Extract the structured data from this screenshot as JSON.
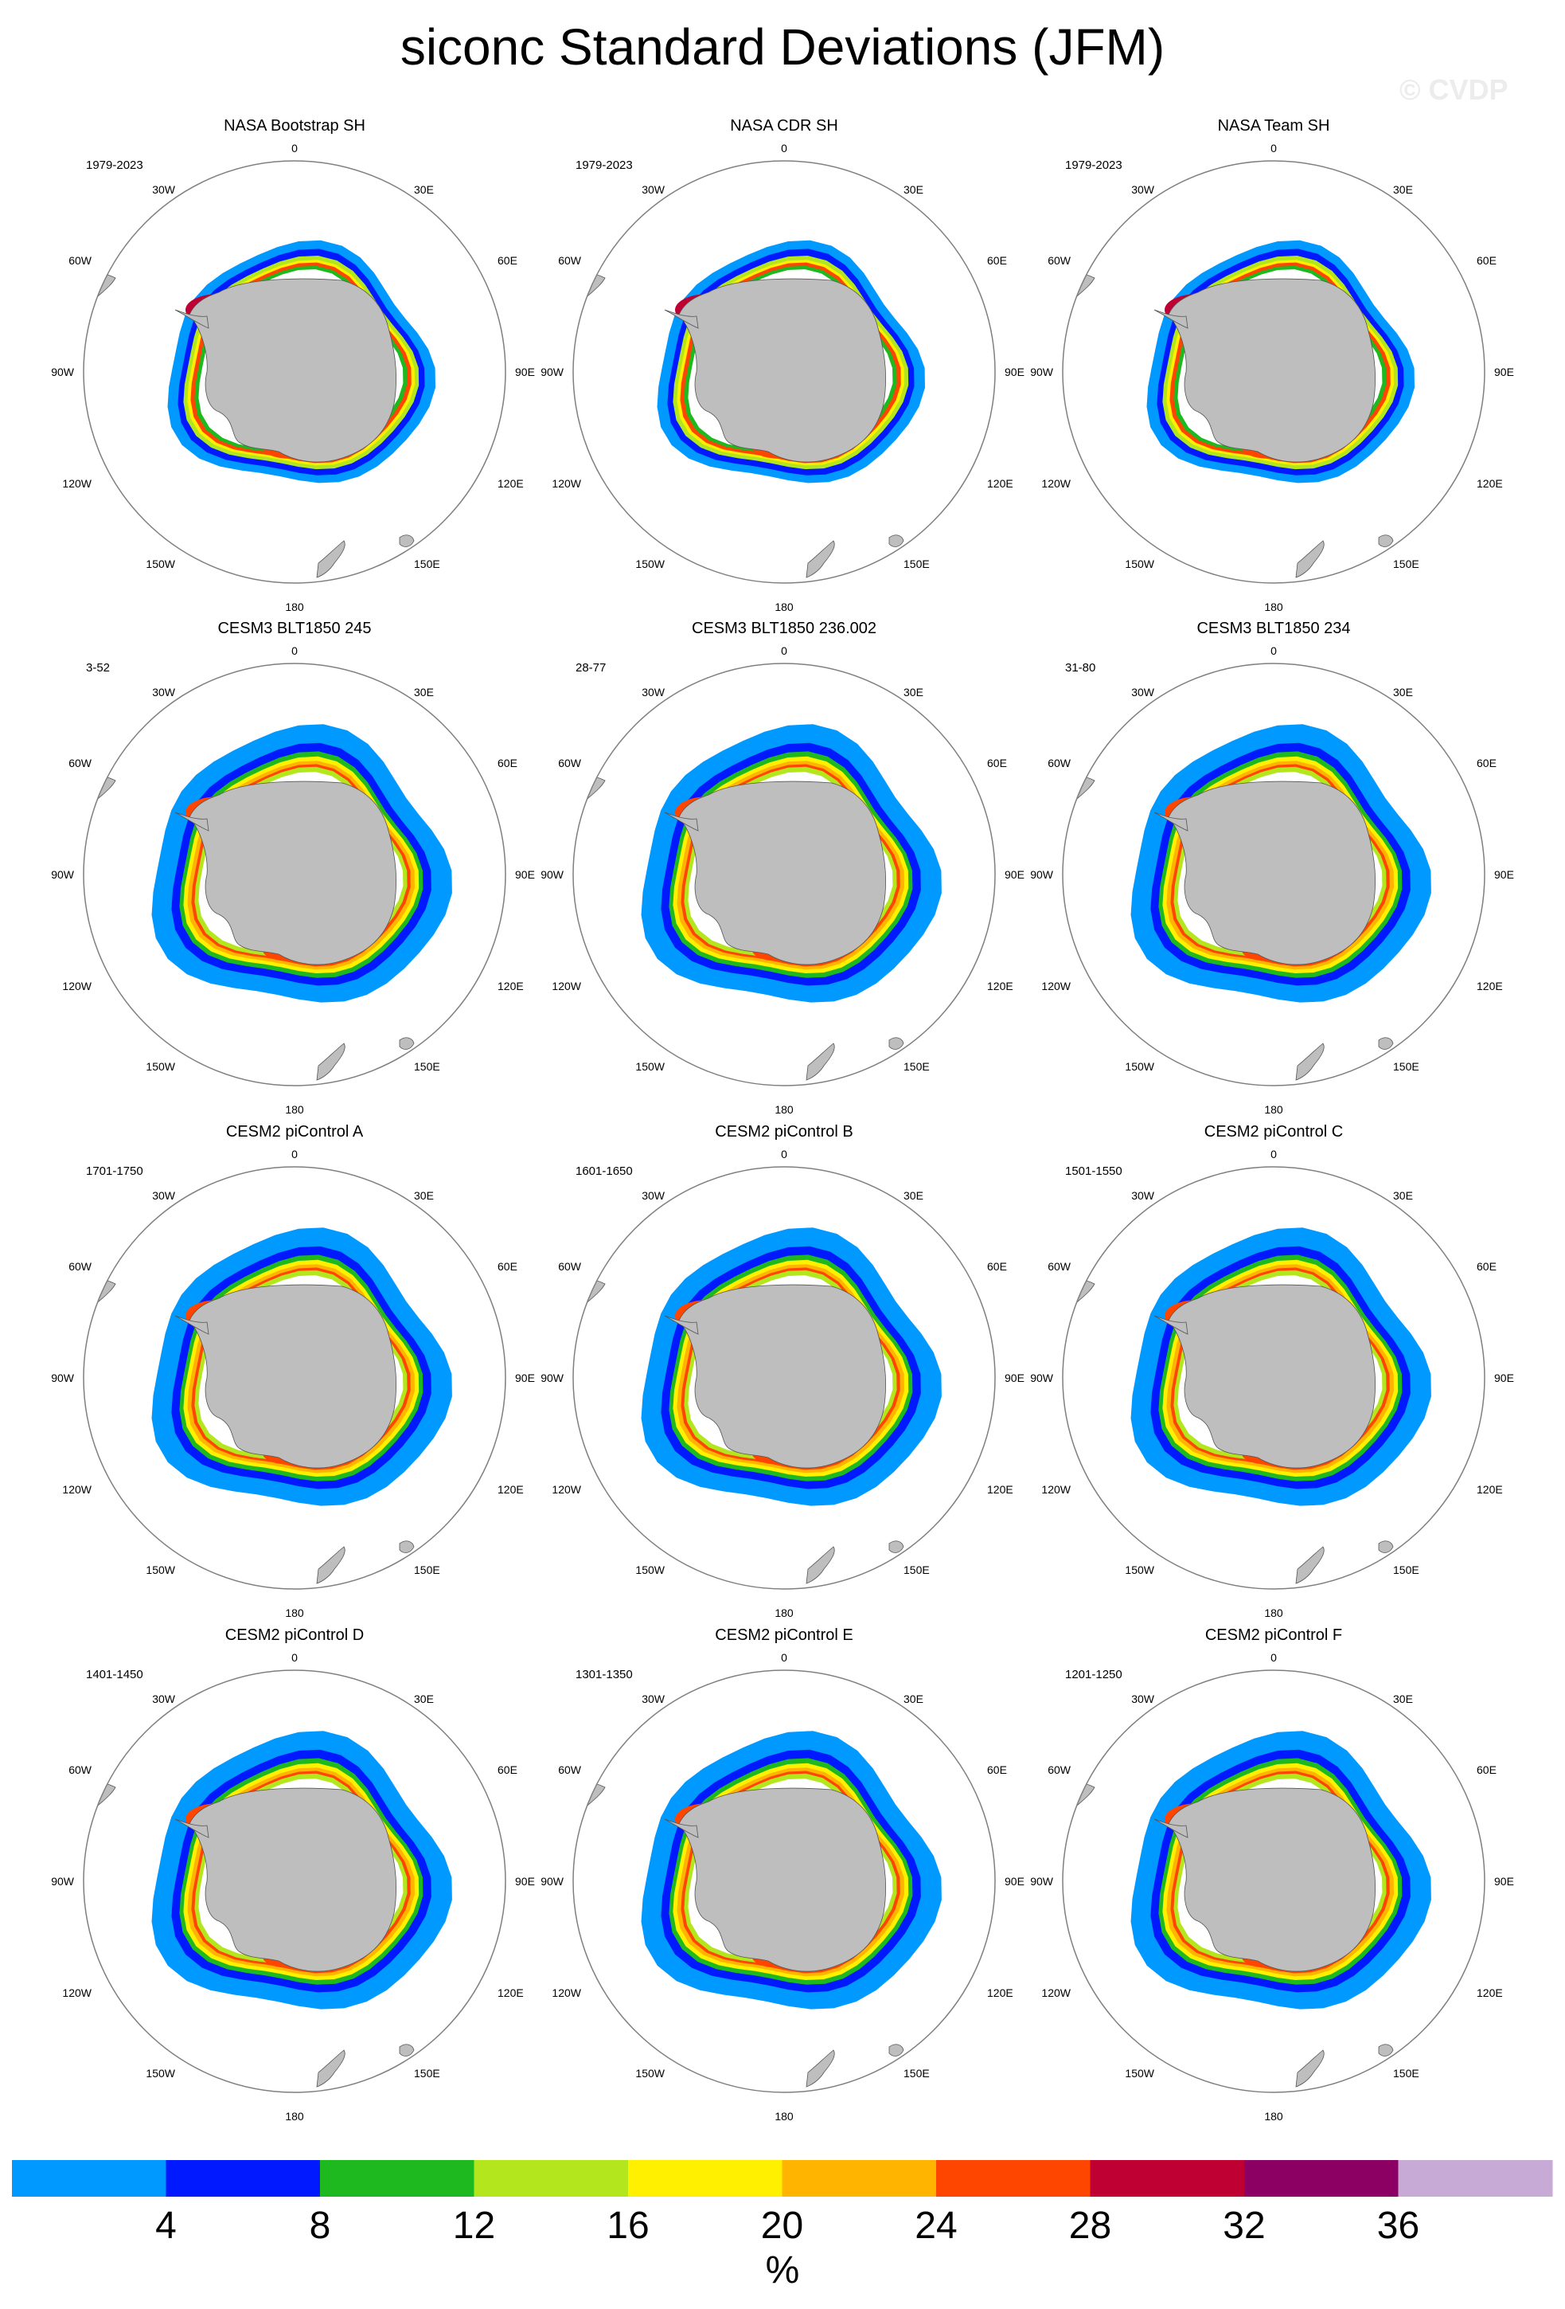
{
  "figure": {
    "title": "siconc Standard Deviations (JFM)",
    "watermark": "© CVDP"
  },
  "panels": [
    {
      "title": "NASA Bootstrap SH",
      "period": "1979-2023",
      "style": "obs"
    },
    {
      "title": "NASA CDR SH",
      "period": "1979-2023",
      "style": "obs"
    },
    {
      "title": "NASA Team SH",
      "period": "1979-2023",
      "style": "obs"
    },
    {
      "title": "CESM3 BLT1850 245",
      "period": "3-52",
      "style": "model"
    },
    {
      "title": "CESM3 BLT1850 236.002",
      "period": "28-77",
      "style": "model"
    },
    {
      "title": "CESM3 BLT1850 234",
      "period": "31-80",
      "style": "model"
    },
    {
      "title": "CESM2 piControl A",
      "period": "1701-1750",
      "style": "model"
    },
    {
      "title": "CESM2 piControl B",
      "period": "1601-1650",
      "style": "model"
    },
    {
      "title": "CESM2 piControl C",
      "period": "1501-1550",
      "style": "model"
    },
    {
      "title": "CESM2 piControl D",
      "period": "1401-1450",
      "style": "model"
    },
    {
      "title": "CESM2 piControl E",
      "period": "1301-1350",
      "style": "model"
    },
    {
      "title": "CESM2 piControl F",
      "period": "1201-1250",
      "style": "model"
    }
  ],
  "map_labels": {
    "top": "0",
    "top_left": "30W",
    "top_right": "30E",
    "upper_left": "60W",
    "upper_right": "60E",
    "left": "90W",
    "right": "90E",
    "lower_left": "120W",
    "lower_right": "120E",
    "bottom_left": "150W",
    "bottom_right": "150E",
    "bottom": "180"
  },
  "colors": {
    "land": "#bebebe",
    "ice_edge": "#ffffff",
    "frame": "#7f7f7f"
  },
  "colorbar": {
    "colors": [
      "#0099ff",
      "#0019ff",
      "#1eb91e",
      "#b4e61e",
      "#fff000",
      "#ffb400",
      "#ff4600",
      "#be0032",
      "#8c0064",
      "#c8aad7"
    ],
    "tick_labels": [
      "4",
      "8",
      "12",
      "16",
      "20",
      "24",
      "28",
      "32",
      "36"
    ],
    "units": "%"
  }
}
